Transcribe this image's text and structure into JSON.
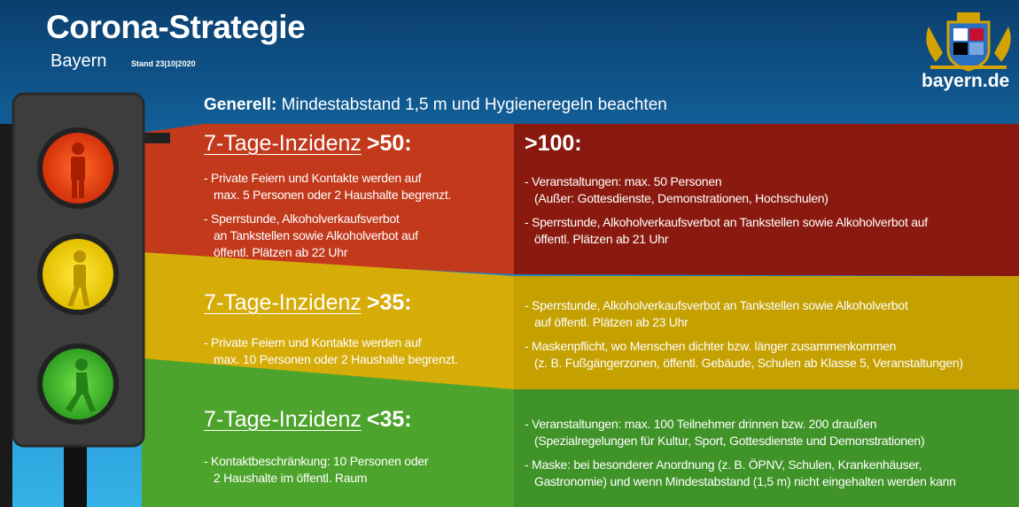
{
  "header": {
    "title": "Corona-Strategie",
    "region": "Bayern",
    "date": "Stand 23|10|2020",
    "site": "bayern.de"
  },
  "general": {
    "label": "Generell:",
    "text": "Mindestabstand 1,5 m und Hygieneregeln beachten"
  },
  "levels": [
    {
      "heading": "7-Tage-Inzidenz",
      "threshold": ">50:",
      "left": [
        [
          "- Private Feiern und Kontakte werden auf",
          "max. 5 Personen oder 2 Haushalte begrenzt."
        ],
        [
          "- Sperrstunde, Alkoholverkaufsverbot",
          "an Tankstellen sowie Alkoholverbot auf",
          "öffentl. Plätzen ab 22 Uhr"
        ]
      ],
      "right_heading": ">100:",
      "right": [
        [
          "- Veranstaltungen: max. 50 Personen",
          "(Außer: Gottesdienste, Demonstrationen, Hochschulen)"
        ],
        [
          "- Sperrstunde, Alkoholverkaufsverbot an Tankstellen sowie Alkoholverbot auf",
          "öffentl. Plätzen ab 21 Uhr"
        ]
      ]
    },
    {
      "heading": "7-Tage-Inzidenz",
      "threshold": ">35:",
      "left": [
        [
          "- Private Feiern und Kontakte werden auf",
          "max. 10 Personen oder 2 Haushalte begrenzt."
        ]
      ],
      "right": [
        [
          "- Sperrstunde, Alkoholverkaufsverbot an Tankstellen sowie Alkoholverbot",
          "auf öffentl. Plätzen ab 23 Uhr"
        ],
        [
          "- Maskenpflicht, wo Menschen dichter bzw. länger zusammenkommen",
          "(z. B. Fußgängerzonen, öffentl. Gebäude, Schulen ab Klasse 5, Veranstaltungen)"
        ]
      ]
    },
    {
      "heading": "7-Tage-Inzidenz",
      "threshold": "<35:",
      "left": [
        [
          "- Kontaktbeschränkung: 10 Personen oder",
          "2 Haushalte im öffentl. Raum"
        ]
      ],
      "right": [
        [
          "- Veranstaltungen: max. 100 Teilnehmer drinnen bzw. 200 draußen",
          "(Spezialregelungen für Kultur, Sport, Gottesdienste und Demonstrationen)"
        ],
        [
          "- Maske: bei besonderer Anordnung (z. B. ÖPNV, Schulen, Krankenhäuser,",
          "Gastronomie) und wenn Mindestabstand (1,5 m) nicht eingehalten werden kann"
        ]
      ]
    }
  ]
}
